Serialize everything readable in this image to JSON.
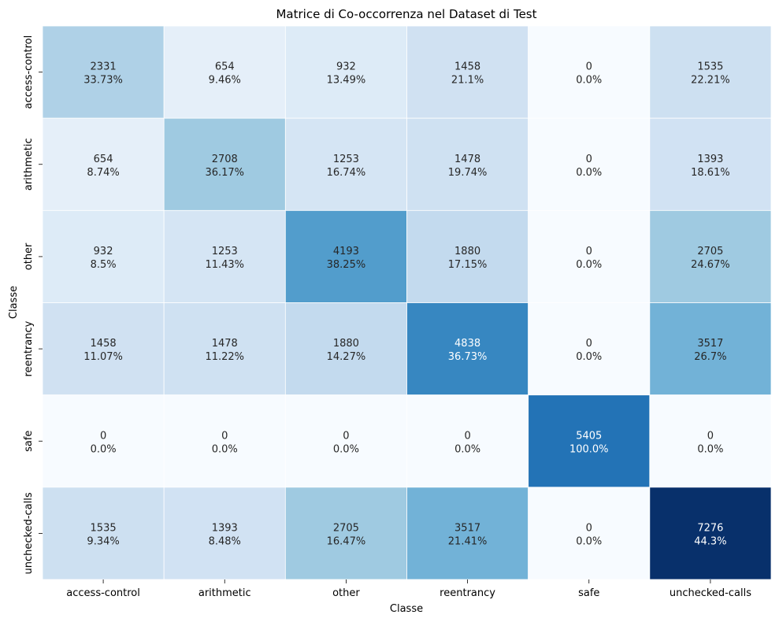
{
  "chart_data": {
    "type": "heatmap",
    "title": "Matrice di Co-occorrenza nel Dataset di Test",
    "xlabel": "Classe",
    "ylabel": "Classe",
    "x_categories": [
      "access-control",
      "arithmetic",
      "other",
      "reentrancy",
      "safe",
      "unchecked-calls"
    ],
    "y_categories": [
      "access-control",
      "arithmetic",
      "other",
      "reentrancy",
      "safe",
      "unchecked-calls"
    ],
    "values": [
      [
        2331,
        654,
        932,
        1458,
        0,
        1535
      ],
      [
        654,
        2708,
        1253,
        1478,
        0,
        1393
      ],
      [
        932,
        1253,
        4193,
        1880,
        0,
        2705
      ],
      [
        1458,
        1478,
        1880,
        4838,
        0,
        3517
      ],
      [
        0,
        0,
        0,
        0,
        5405,
        0
      ],
      [
        1535,
        1393,
        2705,
        3517,
        0,
        7276
      ]
    ],
    "percentages": [
      [
        "33.73%",
        "9.46%",
        "13.49%",
        "21.1%",
        "0.0%",
        "22.21%"
      ],
      [
        "8.74%",
        "36.17%",
        "16.74%",
        "19.74%",
        "0.0%",
        "18.61%"
      ],
      [
        "8.5%",
        "11.43%",
        "38.25%",
        "17.15%",
        "0.0%",
        "24.67%"
      ],
      [
        "11.07%",
        "11.22%",
        "14.27%",
        "36.73%",
        "0.0%",
        "26.7%"
      ],
      [
        "0.0%",
        "0.0%",
        "0.0%",
        "0.0%",
        "100.0%",
        "0.0%"
      ],
      [
        "9.34%",
        "8.48%",
        "16.47%",
        "21.41%",
        "0.0%",
        "44.3%"
      ]
    ],
    "colormap": "Blues",
    "vmin": 0,
    "vmax": 7276,
    "colorbar": false,
    "grid": false
  }
}
